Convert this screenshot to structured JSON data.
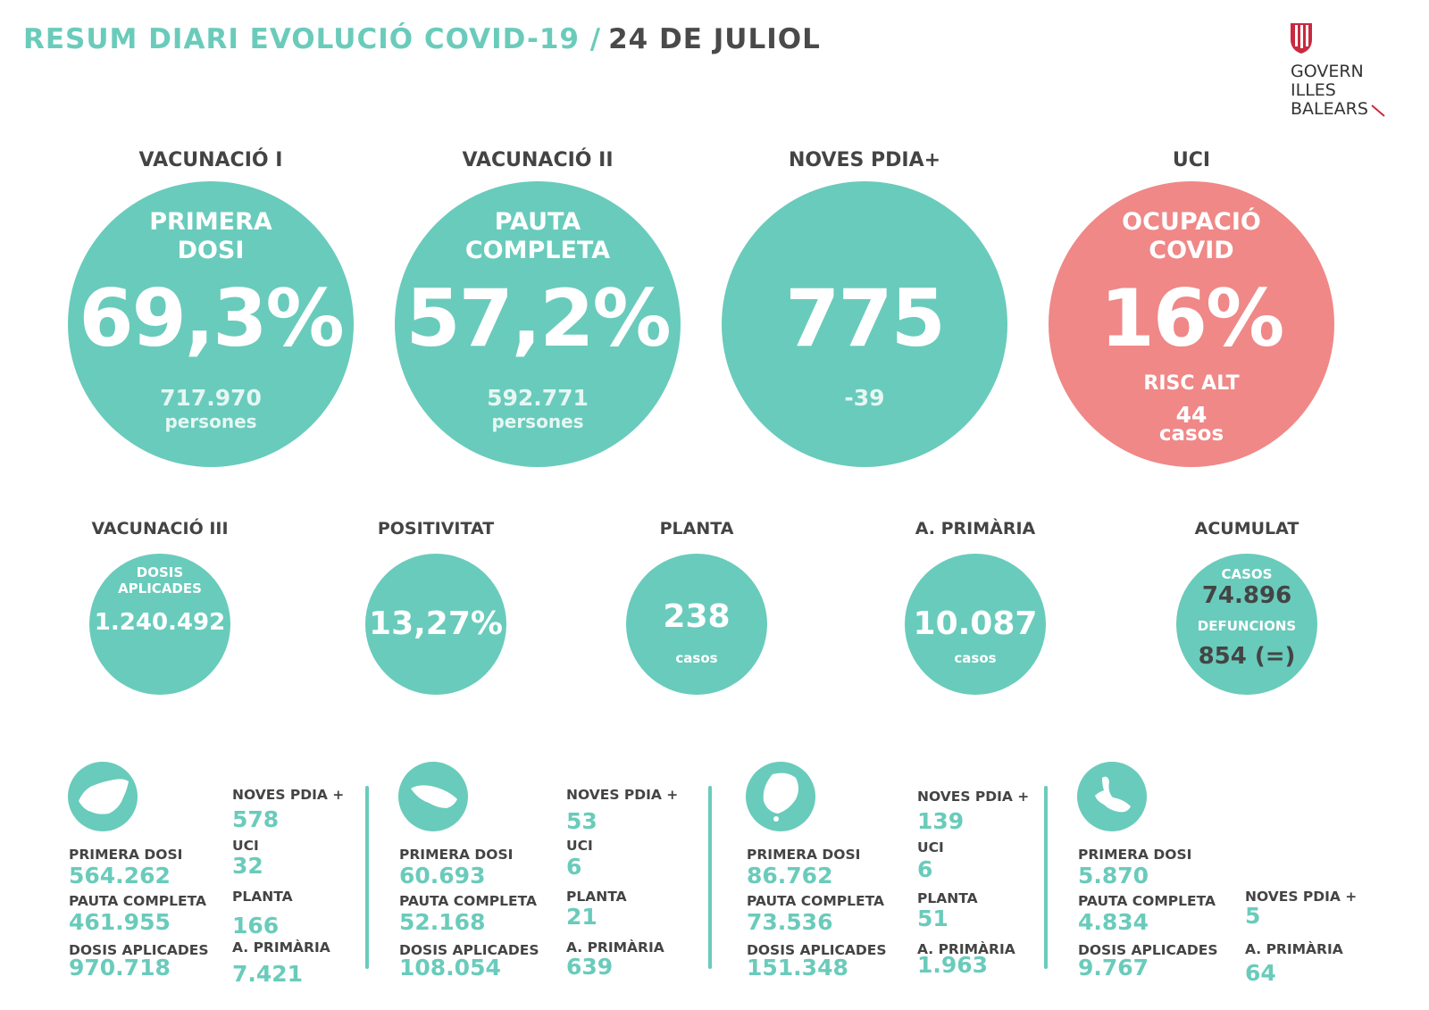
{
  "header": {
    "title": "RESUM DIARI EVOLUCIÓ COVID-19 /",
    "date": "24 DE JULIOL",
    "logo_text": [
      "GOVERN",
      "ILLES",
      "BALEARS"
    ]
  },
  "colors": {
    "accent": "#69cbbb",
    "alert": "#ef8887",
    "text": "#444444"
  },
  "top": [
    {
      "heading": "VACUNACIÓ I",
      "label": "PRIMERA DOSI",
      "value": "69,3%",
      "sub_value": "717.970",
      "sub_label": "persones"
    },
    {
      "heading": "VACUNACIÓ II",
      "label": "PAUTA COMPLETA",
      "value": "57,2%",
      "sub_value": "592.771",
      "sub_label": "persones"
    },
    {
      "heading": "NOVES PDIA+",
      "value": "775",
      "delta": "-39"
    },
    {
      "heading": "UCI",
      "label": "OCUPACIÓ COVID",
      "value": "16%",
      "risk": "RISC ALT",
      "sub_value": "44",
      "sub_label": "casos"
    }
  ],
  "middle": {
    "vacunacio3": {
      "heading": "VACUNACIÓ III",
      "label": "DOSIS APLICADES",
      "value": "1.240.492"
    },
    "positivitat": {
      "heading": "POSITIVITAT",
      "value": "13,27%"
    },
    "planta": {
      "heading": "PLANTA",
      "value": "238",
      "unit": "casos"
    },
    "primaria": {
      "heading": "A. PRIMÀRIA",
      "value": "10.087",
      "unit": "casos"
    },
    "acumulat": {
      "heading": "ACUMULAT",
      "casos_label": "CASOS",
      "casos": "74.896",
      "defuncions_label": "DEFUNCIONS",
      "defuncions": "854 (=)"
    }
  },
  "labels": {
    "primera_dosi": "PRIMERA DOSI",
    "pauta_completa": "PAUTA COMPLETA",
    "dosis_aplicades": "DOSIS APLICADES",
    "noves_pdia": "NOVES PDIA +",
    "uci": "UCI",
    "planta": "PLANTA",
    "primaria": "A. PRIMÀRIA"
  },
  "islands": [
    {
      "icon": "mallorca-icon",
      "primera_dosi": "564.262",
      "pauta_completa": "461.955",
      "dosis_aplicades": "970.718",
      "noves_pdia": "578",
      "uci": "32",
      "planta": "166",
      "primaria": "7.421"
    },
    {
      "icon": "menorca-icon",
      "primera_dosi": "60.693",
      "pauta_completa": "52.168",
      "dosis_aplicades": "108.054",
      "noves_pdia": "53",
      "uci": "6",
      "planta": "21",
      "primaria": "639"
    },
    {
      "icon": "eivissa-icon",
      "primera_dosi": "86.762",
      "pauta_completa": "73.536",
      "dosis_aplicades": "151.348",
      "noves_pdia": "139",
      "uci": "6",
      "planta": "51",
      "primaria": "1.963"
    },
    {
      "icon": "formentera-icon",
      "primera_dosi": "5.870",
      "pauta_completa": "4.834",
      "dosis_aplicades": "9.767",
      "noves_pdia": "5",
      "primaria": "64"
    }
  ]
}
